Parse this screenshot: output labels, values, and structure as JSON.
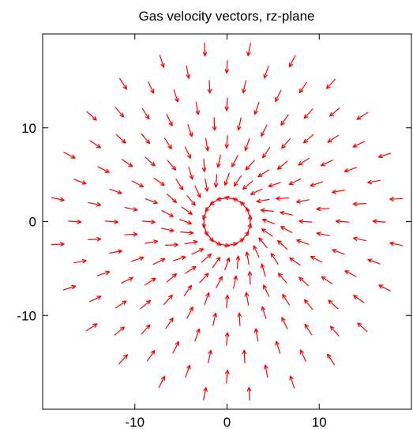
{
  "chart_data": {
    "type": "vector-field",
    "title": "Gas velocity vectors, rz-plane",
    "xlabel": "",
    "ylabel": "",
    "xlim": [
      -20,
      20
    ],
    "ylim": [
      -20,
      20
    ],
    "x_ticks": [
      -10,
      0,
      10
    ],
    "y_ticks": [
      10,
      0,
      -10
    ],
    "grid": false,
    "arrow_color": "#ff0000",
    "field": {
      "description_source": "visible arrows",
      "inner_ring_radius": 2.5,
      "inner_ring_spacing": 20,
      "outer_ring_radii": [
        4.5,
        6.5,
        8.5,
        10.5,
        12.5,
        14.5,
        16.5,
        18.5
      ],
      "outer_ring_spacing": 15,
      "outer_flow": "radially inward",
      "inner_flow": "circulating around origin"
    }
  }
}
